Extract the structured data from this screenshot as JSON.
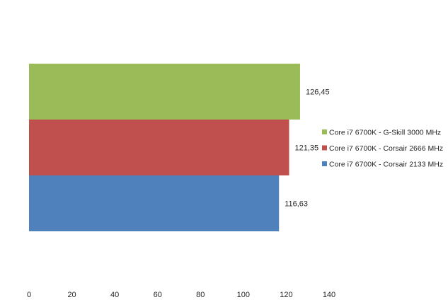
{
  "chart_data": {
    "type": "bar",
    "orientation": "horizontal",
    "stacked_visual": true,
    "xlim": [
      0,
      140
    ],
    "x_ticks": [
      0,
      20,
      40,
      60,
      80,
      100,
      120,
      140
    ],
    "x_tick_labels": [
      "0",
      "20",
      "40",
      "60",
      "80",
      "100",
      "120",
      "140"
    ],
    "grid": false,
    "legend_position": "right",
    "series": [
      {
        "name": "Core  i7 6700K - G-Skill 3000 MHz",
        "value": 126.45,
        "label": "126,45",
        "color": "#9bbb59"
      },
      {
        "name": "Core i7 6700K - Corsair 2666 MHz",
        "value": 121.35,
        "label": "121,35",
        "color": "#c0504d"
      },
      {
        "name": "Core i7 6700K - Corsair 2133 MHz",
        "value": 116.63,
        "label": "116,63",
        "color": "#4f81bd"
      }
    ]
  }
}
